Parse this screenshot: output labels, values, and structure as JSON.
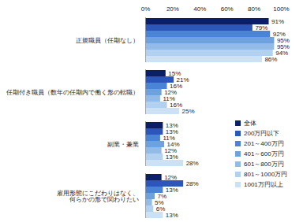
{
  "chart_data": {
    "type": "bar",
    "orientation": "horizontal",
    "categories": [
      "正規職員（任期なし）",
      "任期付き職員（数年の任期内で働く形の転職）",
      "副業・兼業",
      "雇用形態にこだわりはなく、\n何らかの形で関わりたい"
    ],
    "series": [
      {
        "name": "全体",
        "color": "#0b1f66",
        "values": [
          91,
          15,
          13,
          12
        ],
        "value_labels": [
          "91%",
          "15%",
          "13%",
          "12%"
        ]
      },
      {
        "name": "200万円以下",
        "color": "#2c56b8",
        "values": [
          79,
          21,
          13,
          28
        ],
        "value_labels": [
          "79%",
          "21%",
          "13%",
          "28%"
        ]
      },
      {
        "name": "201～400万円",
        "color": "#4a84d6",
        "values": [
          92,
          16,
          11,
          13
        ],
        "value_labels": [
          "92%",
          "16%",
          "11%",
          "13%"
        ]
      },
      {
        "name": "401～600万円",
        "color": "#6ea2df",
        "values": [
          95,
          12,
          14,
          7
        ],
        "value_labels": [
          "95%",
          "12%",
          "14%",
          "7%"
        ]
      },
      {
        "name": "601～800万円",
        "color": "#92bbe7",
        "values": [
          95,
          11,
          12,
          5
        ],
        "value_labels": [
          "95%",
          "11%",
          "12%",
          "5%"
        ]
      },
      {
        "name": "801～1000万円",
        "color": "#b2d0ef",
        "values": [
          94,
          16,
          13,
          6
        ],
        "value_labels": [
          "94%",
          "16%",
          "13%",
          "6%"
        ]
      },
      {
        "name": "1001万円以上",
        "color": "#cde1f5",
        "values": [
          86,
          25,
          28,
          13
        ],
        "value_labels": [
          "86%",
          "25%",
          "28%",
          "13%"
        ]
      }
    ],
    "xlim": [
      0,
      100
    ],
    "xticks": [
      {
        "value": 0,
        "label": "0%"
      },
      {
        "value": 20,
        "label": "20%"
      },
      {
        "value": 40,
        "label": "40%"
      },
      {
        "value": 60,
        "label": "60%"
      },
      {
        "value": 80,
        "label": "80%"
      },
      {
        "value": 100,
        "label": "100%"
      }
    ],
    "grid": false,
    "data_labels": true,
    "legend": "right"
  }
}
